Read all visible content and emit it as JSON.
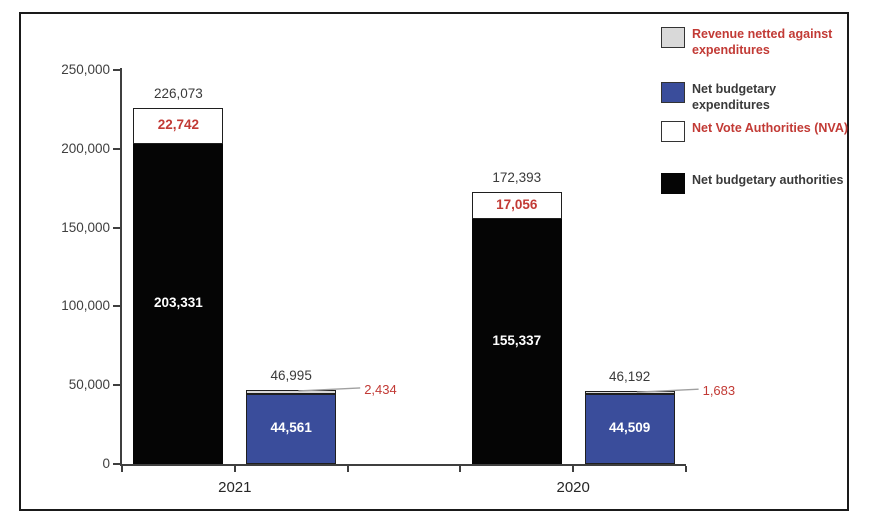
{
  "colors": {
    "red": "#C23A35",
    "blue": "#3A4D9B",
    "gray": "#D9D9D9",
    "black": "#050505",
    "white": "#FFFFFF",
    "dark_text": "#3A3A3A",
    "axis": "#3F3F3F",
    "leader_line": "#A0A0A0",
    "segment_border": "#1F1F1F"
  },
  "chart_data": {
    "type": "bar",
    "stacked": true,
    "title": "",
    "xlabel": "",
    "ylabel": "",
    "grid": false,
    "legend_position": "top-right",
    "categories": [
      "2021",
      "2020"
    ],
    "y_axis": {
      "min": 0,
      "max": 250000,
      "tick_interval": 50000,
      "ticks": [
        {
          "value": 0,
          "label": "0"
        },
        {
          "value": 50000,
          "label": "50,000"
        },
        {
          "value": 100000,
          "label": "100,000"
        },
        {
          "value": 150000,
          "label": "150,000"
        },
        {
          "value": 200000,
          "label": "200,000"
        },
        {
          "value": 250000,
          "label": "250,000"
        }
      ]
    },
    "series": [
      {
        "name": "Net budgetary authorities",
        "values": [
          203331,
          155337
        ]
      },
      {
        "name": "Net Vote Authorities (NVA)",
        "values": [
          22742,
          17056
        ]
      },
      {
        "name": "Net budgetary expenditures",
        "values": [
          44561,
          44509
        ]
      },
      {
        "name": "Revenue netted against expenditures",
        "values": [
          2434,
          1683
        ]
      }
    ],
    "groups": [
      {
        "category": "2021",
        "bars": [
          {
            "name": "authorities-2021",
            "slot": 0,
            "total": 226073,
            "total_label": "226,073",
            "segments": [
              {
                "series": "Net budgetary authorities",
                "value": 203331,
                "label": "203,331",
                "fill": "black",
                "label_color": "#FFFFFF",
                "label_pos": "inside"
              },
              {
                "series": "Net Vote Authorities (NVA)",
                "value": 22742,
                "label": "22,742",
                "fill": "white",
                "label_color": "#C23A35",
                "label_pos": "inside"
              }
            ]
          },
          {
            "name": "expenditures-2021",
            "slot": 1,
            "total": 46995,
            "total_label": "46,995",
            "segments": [
              {
                "series": "Net budgetary expenditures",
                "value": 44561,
                "label": "44,561",
                "fill": "blue",
                "label_color": "#FFFFFF",
                "label_pos": "inside"
              },
              {
                "series": "Revenue netted against expenditures",
                "value": 2434,
                "label": "2,434",
                "fill": "gray",
                "label_color": "#C23A35",
                "label_pos": "callout"
              }
            ]
          }
        ]
      },
      {
        "category": "2020",
        "bars": [
          {
            "name": "authorities-2020",
            "slot": 3,
            "total": 172393,
            "total_label": "172,393",
            "segments": [
              {
                "series": "Net budgetary authorities",
                "value": 155337,
                "label": "155,337",
                "fill": "black",
                "label_color": "#FFFFFF",
                "label_pos": "inside"
              },
              {
                "series": "Net Vote Authorities (NVA)",
                "value": 17056,
                "label": "17,056",
                "fill": "white",
                "label_color": "#C23A35",
                "label_pos": "inside"
              }
            ]
          },
          {
            "name": "expenditures-2020",
            "slot": 4,
            "total": 46192,
            "total_label": "46,192",
            "segments": [
              {
                "series": "Net budgetary expenditures",
                "value": 44509,
                "label": "44,509",
                "fill": "blue",
                "label_color": "#FFFFFF",
                "label_pos": "inside"
              },
              {
                "series": "Revenue netted against expenditures",
                "value": 1683,
                "label": "1,683",
                "fill": "gray",
                "label_color": "#C23A35",
                "label_pos": "callout"
              }
            ]
          }
        ]
      }
    ]
  },
  "legend": {
    "items": [
      {
        "label": "Revenue netted against expenditures",
        "fill": "gray",
        "text_color": "#C23A35",
        "icon": "gray-swatch"
      },
      {
        "label": "Net budgetary expenditures",
        "fill": "blue",
        "text_color": "#3A3A3A",
        "icon": "blue-swatch"
      },
      {
        "label": "Net Vote Authorities (NVA)",
        "fill": "white",
        "text_color": "#C23A35",
        "icon": "white-swatch"
      },
      {
        "label": "Net budgetary authorities",
        "fill": "black",
        "text_color": "#3A3A3A",
        "icon": "black-swatch"
      }
    ]
  }
}
